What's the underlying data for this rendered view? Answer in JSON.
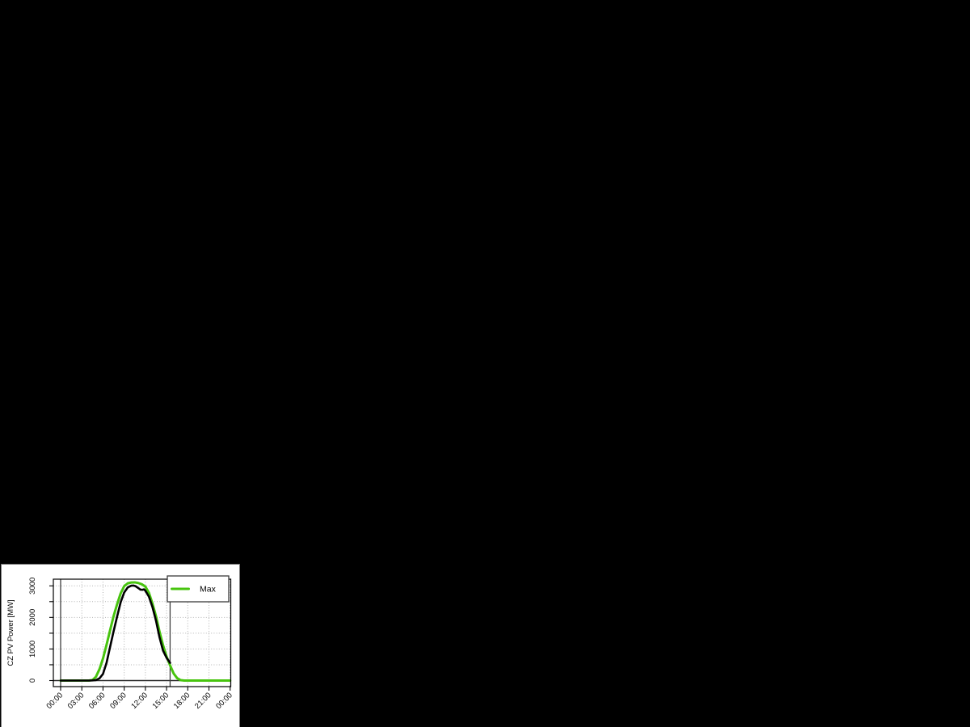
{
  "window": {
    "background_color": "#000000",
    "panel_background": "#ffffff",
    "panel_border_color": "#777777"
  },
  "chart_data": {
    "type": "line",
    "title": "",
    "xlabel": "",
    "ylabel": "CZ PV Power [MW]",
    "x_unit": "time_of_day_hours",
    "xlim": [
      0,
      24
    ],
    "ylim": [
      0,
      3000
    ],
    "grid": true,
    "grid_color": "#b3b3b3",
    "axis_color": "#000000",
    "x_ticks": [
      {
        "t": 0,
        "label": "00:00"
      },
      {
        "t": 3,
        "label": "03:00"
      },
      {
        "t": 6,
        "label": "06:00"
      },
      {
        "t": 9,
        "label": "09:00"
      },
      {
        "t": 12,
        "label": "12:00"
      },
      {
        "t": 15,
        "label": "15:00"
      },
      {
        "t": 18,
        "label": "18:00"
      },
      {
        "t": 21,
        "label": "21:00"
      },
      {
        "t": 24,
        "label": "00:00"
      }
    ],
    "y_ticks": [
      {
        "v": 0,
        "label": "0"
      },
      {
        "v": 500,
        "label": ""
      },
      {
        "v": 1000,
        "label": "1000"
      },
      {
        "v": 1500,
        "label": ""
      },
      {
        "v": 2000,
        "label": "2000"
      },
      {
        "v": 2500,
        "label": ""
      },
      {
        "v": 3000,
        "label": "3000"
      }
    ],
    "reference_lines": {
      "horizontal_v": [
        0
      ],
      "vertical_t": [
        0,
        15.5
      ],
      "color": "#3f3f3f"
    },
    "legend": [
      {
        "label": "Max",
        "color": "#47c40e"
      }
    ],
    "legend_position": "top-right",
    "series": [
      {
        "name": "Max",
        "color": "#47c40e",
        "width": 3,
        "points": [
          [
            0,
            0
          ],
          [
            0.5,
            0
          ],
          [
            1,
            0
          ],
          [
            1.5,
            0
          ],
          [
            2,
            0
          ],
          [
            2.5,
            0
          ],
          [
            3,
            0
          ],
          [
            3.5,
            0
          ],
          [
            4,
            0
          ],
          [
            4.5,
            15
          ],
          [
            5,
            120
          ],
          [
            5.5,
            360
          ],
          [
            6,
            700
          ],
          [
            6.5,
            1130
          ],
          [
            7,
            1590
          ],
          [
            7.5,
            2040
          ],
          [
            8,
            2420
          ],
          [
            8.5,
            2760
          ],
          [
            9,
            2990
          ],
          [
            9.5,
            3080
          ],
          [
            10,
            3105
          ],
          [
            10.5,
            3110
          ],
          [
            11,
            3090
          ],
          [
            11.5,
            3050
          ],
          [
            12,
            2975
          ],
          [
            12.5,
            2780
          ],
          [
            13,
            2440
          ],
          [
            13.5,
            2040
          ],
          [
            14,
            1550
          ],
          [
            14.5,
            1120
          ],
          [
            15,
            760
          ],
          [
            15.5,
            480
          ],
          [
            16,
            225
          ],
          [
            16.5,
            75
          ],
          [
            17,
            12
          ],
          [
            17.5,
            0
          ],
          [
            18,
            0
          ],
          [
            19,
            0
          ],
          [
            20,
            0
          ],
          [
            21,
            0
          ],
          [
            22,
            0
          ],
          [
            23,
            0
          ],
          [
            24,
            0
          ]
        ]
      },
      {
        "name": "",
        "color": "#000000",
        "width": 2.6,
        "points": [
          [
            0,
            0
          ],
          [
            0.5,
            0
          ],
          [
            1,
            0
          ],
          [
            1.5,
            0
          ],
          [
            2,
            0
          ],
          [
            2.5,
            0
          ],
          [
            3,
            0
          ],
          [
            3.5,
            0
          ],
          [
            4,
            0
          ],
          [
            4.5,
            5
          ],
          [
            5,
            15
          ],
          [
            5.5,
            70
          ],
          [
            6,
            210
          ],
          [
            6.5,
            560
          ],
          [
            7,
            1060
          ],
          [
            7.5,
            1560
          ],
          [
            8,
            2030
          ],
          [
            8.5,
            2480
          ],
          [
            9,
            2790
          ],
          [
            9.5,
            2950
          ],
          [
            10,
            3005
          ],
          [
            10.3,
            3010
          ],
          [
            10.6,
            2990
          ],
          [
            11,
            2930
          ],
          [
            11.3,
            2880
          ],
          [
            11.6,
            2875
          ],
          [
            11.8,
            2890
          ],
          [
            12,
            2845
          ],
          [
            12.5,
            2660
          ],
          [
            13,
            2330
          ],
          [
            13.5,
            1900
          ],
          [
            14,
            1370
          ],
          [
            14.5,
            950
          ],
          [
            15,
            720
          ],
          [
            15.5,
            560
          ]
        ]
      }
    ]
  }
}
